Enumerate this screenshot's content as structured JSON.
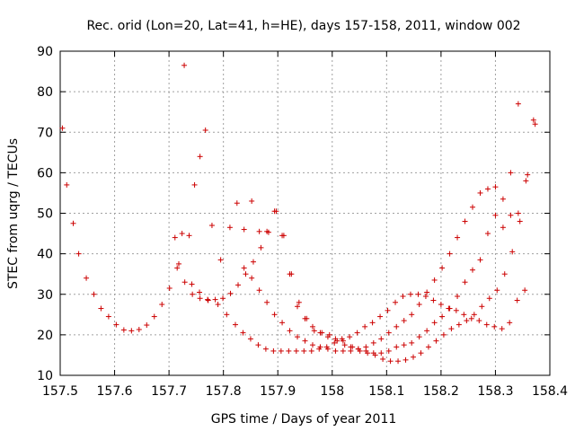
{
  "chart_data": {
    "type": "scatter",
    "title": "Rec. orid (Lon=20, Lat=41, h=HE), days 157-158, 2011, window 002",
    "xlabel": "GPS time / Days of year 2011",
    "ylabel": "STEC from uqrg / TECUs",
    "xlim": [
      157.5,
      158.4
    ],
    "ylim": [
      10,
      90
    ],
    "x_ticks": [
      "157.5",
      "157.6",
      "157.7",
      "157.8",
      "157.9",
      "158",
      "158.1",
      "158.2",
      "158.3",
      "158.4"
    ],
    "y_ticks": [
      "10",
      "20",
      "30",
      "40",
      "50",
      "60",
      "70",
      "80",
      "90"
    ],
    "grid": true,
    "legend": "none",
    "marker": "+",
    "color": "#cc0000",
    "series": [
      {
        "x": [
          157.504,
          157.512,
          157.524,
          157.534,
          157.548,
          157.562,
          157.575,
          157.589,
          157.603,
          157.617,
          157.631,
          157.645,
          157.659,
          157.673,
          157.687,
          157.701,
          157.715,
          157.729,
          157.743,
          157.757,
          157.771,
          157.785,
          157.799,
          157.813,
          157.827,
          157.841,
          157.855,
          157.869,
          157.883,
          157.897,
          157.911,
          157.925,
          157.939,
          157.953,
          157.967,
          157.981,
          157.995,
          158.009,
          158.023,
          158.037,
          158.051,
          158.065,
          158.079,
          158.093,
          158.107,
          158.121,
          158.135,
          158.149,
          158.163,
          158.177,
          158.191,
          158.205,
          158.219,
          158.233,
          158.247,
          158.261,
          158.275,
          158.289,
          158.303,
          158.317,
          158.331,
          158.345,
          158.359,
          158.373
        ],
        "y": [
          71,
          57,
          47.5,
          40,
          34,
          30,
          26.5,
          24.5,
          22.5,
          21.2,
          21,
          21.3,
          22.4,
          24.5,
          27.5,
          31.5,
          36.5,
          33,
          30,
          29,
          28.7,
          28.7,
          29,
          30.2,
          32.3,
          35,
          38,
          41.5,
          45.3,
          50.5,
          44.5,
          35,
          28,
          24,
          21,
          20.5,
          20,
          18.5,
          17.5,
          17,
          16,
          15.5,
          15,
          14,
          13.5,
          13.5,
          13.8,
          14.5,
          15.5,
          17,
          18.5,
          20,
          21.5,
          22.5,
          23.5,
          25,
          27,
          29,
          31,
          35,
          40.5,
          48,
          59.5,
          72
        ]
      },
      {
        "x": [
          157.711,
          157.724,
          157.737,
          157.747,
          157.757,
          157.767,
          157.779,
          157.795,
          157.812,
          157.825,
          157.838,
          157.852,
          157.866,
          157.88,
          157.894,
          157.908,
          157.922,
          157.936,
          157.95,
          157.964,
          157.978,
          157.992,
          158.006,
          158.02,
          158.034,
          158.048,
          158.062,
          158.076,
          158.09,
          158.104,
          158.118,
          158.132,
          158.146,
          158.16,
          158.174,
          158.188,
          158.202,
          158.216,
          158.23,
          158.244,
          158.258,
          158.272,
          158.286,
          158.3,
          158.314,
          158.328,
          158.342,
          158.356,
          158.37
        ],
        "y": [
          44,
          45,
          44.5,
          57,
          64,
          70.5,
          47,
          38.5,
          46.5,
          52.5,
          46,
          53,
          45.5,
          45.5,
          50.5,
          44.5,
          35,
          27,
          24,
          22,
          20.5,
          19.5,
          19,
          18.5,
          17,
          16.5,
          16,
          15.5,
          15.5,
          16,
          17,
          17.5,
          18,
          19.5,
          21,
          23,
          24.5,
          26.5,
          29.5,
          33,
          36,
          38.5,
          45,
          49.5,
          46.5,
          49.5,
          50,
          58,
          73
        ]
      },
      {
        "x": [
          157.718,
          157.728,
          157.742,
          157.756,
          157.772,
          157.79,
          157.806,
          157.822,
          157.836,
          157.85,
          157.864,
          157.878,
          157.892,
          157.906,
          157.92,
          157.934,
          157.948,
          157.962,
          157.976,
          157.99,
          158.004,
          158.018,
          158.032,
          158.046,
          158.06,
          158.074,
          158.088,
          158.102,
          158.116,
          158.13,
          158.144,
          158.158,
          158.172,
          158.186,
          158.2,
          158.214,
          158.228,
          158.242,
          158.256,
          158.27,
          158.284,
          158.298,
          158.312,
          158.326,
          158.34,
          158.354
        ],
        "y": [
          37.5,
          86.5,
          32.5,
          30.5,
          28.5,
          27.5,
          25,
          22.5,
          20.5,
          19,
          17.5,
          16.5,
          16,
          16,
          16,
          16,
          16,
          16,
          16.5,
          17,
          18,
          19,
          19.5,
          20.5,
          22,
          23,
          24.5,
          26,
          28,
          29.5,
          30,
          30,
          29.5,
          28.5,
          27.5,
          26.5,
          26,
          25,
          24,
          23.5,
          22.5,
          22,
          21.5,
          23,
          28.5,
          31
        ]
      },
      {
        "x": [
          157.838,
          157.852,
          157.866,
          157.88,
          157.894,
          157.908,
          157.922,
          157.936,
          157.95,
          157.964,
          157.978,
          157.992,
          158.006,
          158.02,
          158.034,
          158.048,
          158.062,
          158.076,
          158.09,
          158.104,
          158.118,
          158.132,
          158.146,
          158.16,
          158.174,
          158.188,
          158.202,
          158.216,
          158.23,
          158.244,
          158.258,
          158.272,
          158.286,
          158.3,
          158.314,
          158.328,
          158.342
        ],
        "y": [
          36.5,
          34,
          31,
          28,
          25,
          23,
          21,
          19.5,
          18.5,
          17.5,
          17,
          16.5,
          16,
          16,
          16,
          16.5,
          17,
          18,
          19,
          20.5,
          22,
          23.5,
          25,
          27.5,
          30.5,
          33.5,
          36.5,
          40,
          44,
          48,
          51.5,
          55,
          56,
          56.5,
          53.5,
          60,
          77
        ]
      }
    ]
  }
}
